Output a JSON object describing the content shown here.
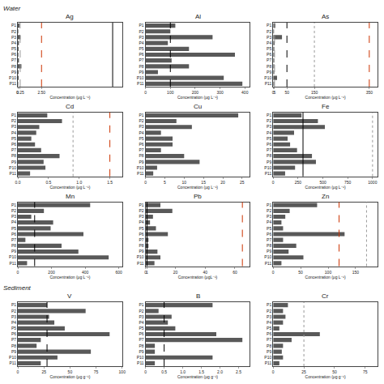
{
  "chart_data": [
    {
      "type": "bar",
      "orientation": "horizontal",
      "title": "Ag",
      "x_label": "Concentration (μg L⁻¹)",
      "annotations": [
        "Water"
      ],
      "categories": [
        "P1",
        "P2",
        "P3",
        "P4",
        "P5",
        "P6",
        "P7",
        "P8",
        "P9",
        "P10",
        "P11"
      ],
      "values": [
        0.18,
        0.05,
        0.28,
        0.12,
        0.08,
        0.06,
        0.12,
        0.38,
        0.08,
        0.09,
        0.04
      ],
      "color": "#595959",
      "grid": false,
      "lines": [
        {
          "x": 10.0,
          "color": "black",
          "line_style": "solid"
        },
        {
          "x": 2.5,
          "color": "#cc3300",
          "line_style": "dashed"
        },
        {
          "x": 0.25,
          "color": "#999999",
          "line_style": "dashed"
        }
      ],
      "xlim": [
        0,
        11
      ],
      "xticks": [
        0,
        0.25,
        {
          "value": 2.5,
          "label": "2.50"
        }
      ]
    },
    {
      "type": "bar",
      "orientation": "horizontal",
      "title": "Al",
      "x_label": "Concentration (μg L⁻¹)",
      "categories": [
        "P1",
        "P2",
        "P3",
        "P4",
        "P5",
        "P6",
        "P7",
        "P8",
        "P9",
        "P10",
        "P11"
      ],
      "values": [
        120,
        100,
        270,
        90,
        175,
        360,
        105,
        175,
        50,
        315,
        390
      ],
      "color": "#595959",
      "grid": false,
      "lines": [
        {
          "x": 100,
          "color": "black",
          "line_style": "dashed"
        }
      ],
      "xlim": [
        0,
        420
      ],
      "xticks": [
        0,
        100,
        200,
        300,
        400
      ]
    },
    {
      "type": "bar",
      "orientation": "horizontal",
      "title": "As",
      "x_label": "Concentration (μg L⁻¹)",
      "categories": [
        "P1",
        "P2",
        "P3",
        "P4",
        "P5",
        "P6",
        "P7",
        "P8",
        "P9",
        "P10",
        "P11"
      ],
      "values": [
        8,
        3,
        32,
        5,
        4,
        4,
        4,
        4,
        4,
        14,
        4
      ],
      "color": "#595959",
      "grid": false,
      "lines": [
        {
          "x": 50,
          "color": "black",
          "line_style": "dashed"
        },
        {
          "x": 350,
          "color": "#cc3300",
          "line_style": "dashed"
        },
        {
          "x": 5,
          "color": "#999999",
          "line_style": "dashed"
        },
        {
          "x": 150,
          "color": "#999999",
          "line_style": "dotted"
        }
      ],
      "xlim": [
        0,
        380
      ],
      "xticks": [
        0,
        5,
        50,
        150,
        350
      ]
    },
    {
      "type": "bar",
      "orientation": "horizontal",
      "title": "Cd",
      "x_label": "Concentration (μg L⁻¹)",
      "categories": [
        "P1",
        "P2",
        "P3",
        "P4",
        "P5",
        "P6",
        "P7",
        "P8",
        "P9",
        "P10",
        "P11"
      ],
      "values": [
        0.48,
        0.72,
        0.35,
        0.3,
        0.22,
        0.28,
        0.38,
        0.68,
        0.42,
        0.45,
        0.2
      ],
      "color": "#595959",
      "grid": false,
      "lines": [
        {
          "x": 1.5,
          "color": "#cc3300",
          "line_style": "dashed"
        },
        {
          "x": 0.9,
          "color": "#999999",
          "line_style": "dotted"
        }
      ],
      "xlim": [
        0,
        1.7
      ],
      "xticks": [
        {
          "value": 0.0,
          "label": "0.0"
        },
        0.5,
        {
          "value": 1.0,
          "label": "1.0"
        },
        1.5
      ]
    },
    {
      "type": "bar",
      "orientation": "horizontal",
      "title": "Cu",
      "x_label": "Concentration (μg L⁻¹)",
      "categories": [
        "P1",
        "P2",
        "P3",
        "P4",
        "P5",
        "P6",
        "P7",
        "P8",
        "P9",
        "P10",
        "P11"
      ],
      "values": [
        24,
        8,
        12,
        4,
        7,
        7,
        4,
        10,
        14,
        3,
        2
      ],
      "color": "#595959",
      "grid": false,
      "lines": [],
      "xlim": [
        0,
        27
      ],
      "xticks": [
        0,
        5,
        10,
        15,
        20,
        25
      ]
    },
    {
      "type": "bar",
      "orientation": "horizontal",
      "title": "Fe",
      "x_label": "Concentration (μg L⁻¹)",
      "categories": [
        "P1",
        "P2",
        "P3",
        "P4",
        "P5",
        "P6",
        "P7",
        "P8",
        "P9",
        "P10",
        "P11"
      ],
      "values": [
        285,
        450,
        520,
        210,
        145,
        170,
        240,
        390,
        430,
        220,
        120
      ],
      "color": "#595959",
      "grid": false,
      "lines": [
        {
          "x": 300,
          "color": "black",
          "line_style": "solid"
        },
        {
          "x": 1000,
          "color": "#999999",
          "line_style": "dotted"
        }
      ],
      "xlim": [
        0,
        1050
      ],
      "xticks": [
        0,
        250,
        500,
        750,
        1000
      ]
    },
    {
      "type": "bar",
      "orientation": "horizontal",
      "title": "Mn",
      "x_label": "Concentration (μg L⁻¹)",
      "categories": [
        "P1",
        "P2",
        "P3",
        "P4",
        "P5",
        "P6",
        "P7",
        "P8",
        "P9",
        "P10",
        "P11"
      ],
      "values": [
        430,
        155,
        80,
        210,
        195,
        390,
        45,
        260,
        360,
        540,
        55
      ],
      "color": "#595959",
      "grid": false,
      "lines": [
        {
          "x": 100,
          "color": "black",
          "line_style": "dashed"
        }
      ],
      "xlim": [
        0,
        620
      ],
      "xticks": [
        0,
        200,
        400,
        600
      ]
    },
    {
      "type": "bar",
      "orientation": "horizontal",
      "title": "Pb",
      "x_label": "Concentration (μgL⁻¹)",
      "categories": [
        "P1",
        "P2",
        "P3",
        "P4",
        "P5",
        "P6",
        "P7",
        "P8",
        "P9",
        "P10",
        "P11"
      ],
      "values": [
        10,
        18,
        5,
        3,
        7,
        15,
        2,
        2,
        8,
        10,
        6
      ],
      "color": "#595959",
      "grid": false,
      "lines": [
        {
          "x": 1,
          "color": "black",
          "line_style": "solid"
        },
        {
          "x": 65,
          "color": "#cc3300",
          "line_style": "dashed"
        }
      ],
      "xlim": [
        0,
        70
      ],
      "xticks": [
        0,
        1,
        20,
        40,
        60
      ]
    },
    {
      "type": "bar",
      "orientation": "horizontal",
      "title": "Zn",
      "x_label": "Concentration (μg L⁻¹)",
      "categories": [
        "P1",
        "P2",
        "P3",
        "P4",
        "P5",
        "P6",
        "P7",
        "P8",
        "P9",
        "P10",
        "P11"
      ],
      "values": [
        80,
        30,
        22,
        15,
        18,
        130,
        18,
        42,
        28,
        55,
        15
      ],
      "color": "#595959",
      "grid": false,
      "lines": [
        {
          "x": 120,
          "color": "#cc3300",
          "line_style": "dashed"
        },
        {
          "x": 170,
          "color": "#999999",
          "line_style": "dotted"
        }
      ],
      "xlim": [
        0,
        190
      ],
      "xticks": [
        0,
        50,
        100,
        150
      ]
    },
    {
      "type": "bar",
      "orientation": "horizontal",
      "title": "V",
      "x_label": "Concentration (μg g⁻¹)",
      "annotations": [
        "Sediment"
      ],
      "categories": [
        "P1",
        "P2",
        "P3",
        "P4",
        "P5",
        "P6",
        "P7",
        "P8",
        "P9",
        "P10",
        "P11"
      ],
      "values": [
        28,
        65,
        30,
        35,
        45,
        88,
        22,
        18,
        70,
        38,
        22
      ],
      "color": "#595959",
      "grid": false,
      "lines": [
        {
          "x": 28,
          "color": "black",
          "line_style": "dashed"
        }
      ],
      "xlim": [
        0,
        100
      ],
      "xticks": [
        0,
        25,
        50,
        75,
        100
      ]
    },
    {
      "type": "bar",
      "orientation": "horizontal",
      "title": "B",
      "x_label": "Concentration (μg g⁻¹)",
      "categories": [
        "P1",
        "P2",
        "P3",
        "P4",
        "P5",
        "P6",
        "P7",
        "P8",
        "P9",
        "P10",
        "P11"
      ],
      "values": [
        1.8,
        0.35,
        0.7,
        0.6,
        0.8,
        1.9,
        2.6,
        0.25,
        0.25,
        1.8,
        0.25
      ],
      "color": "#595959",
      "grid": false,
      "lines": [
        {
          "x": 0.5,
          "color": "black",
          "line_style": "dashed"
        }
      ],
      "xlim": [
        0,
        2.8
      ],
      "xticks": [
        0,
        0.5,
        {
          "value": 1.0,
          "label": "1.0"
        },
        1.5,
        {
          "value": 2.0,
          "label": "2.0"
        },
        2.5
      ]
    },
    {
      "type": "bar",
      "orientation": "horizontal",
      "title": "Cr",
      "x_label": "Concentration (μg g⁻¹)",
      "categories": [
        "P1",
        "P2",
        "P3",
        "P4",
        "P5",
        "P6",
        "P7",
        "P8",
        "P9",
        "P10",
        "P11"
      ],
      "values": [
        12,
        8,
        10,
        8,
        5,
        38,
        15,
        8,
        7,
        8,
        5
      ],
      "color": "#595959",
      "grid": false,
      "lines": [
        {
          "x": 25,
          "color": "#999999",
          "line_style": "dotted"
        }
      ],
      "xlim": [
        0,
        85
      ],
      "xticks": [
        0,
        25,
        50,
        75
      ]
    }
  ]
}
